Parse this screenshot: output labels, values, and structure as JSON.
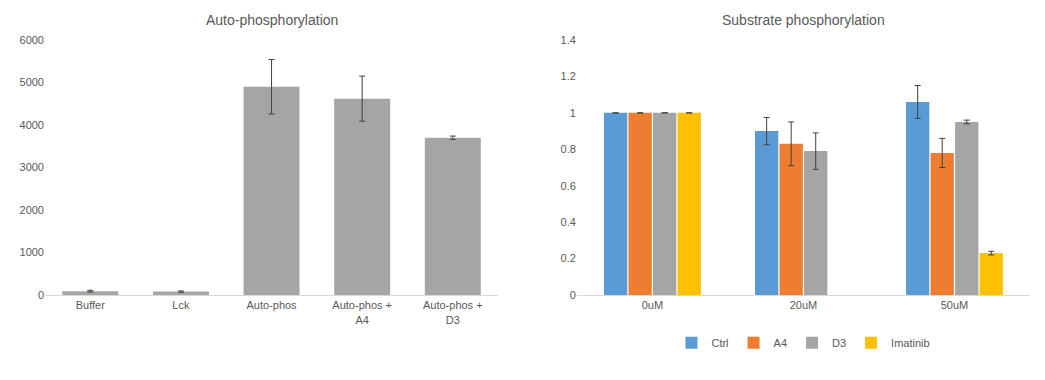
{
  "chart_data": [
    {
      "type": "bar",
      "title": "Auto-phosphorylation",
      "categories": [
        "Buffer",
        "Lck",
        "Auto-phos",
        "Auto-phos + A4",
        "Auto-phos + D3"
      ],
      "values": [
        90,
        80,
        4900,
        4620,
        3700
      ],
      "errors": [
        20,
        15,
        640,
        530,
        40
      ],
      "color": "#a5a5a5",
      "ylim": [
        0,
        6000
      ],
      "yticks": [
        0,
        1000,
        2000,
        3000,
        4000,
        5000,
        6000
      ],
      "grid": false
    },
    {
      "type": "bar",
      "title": "Substrate phosphorylation",
      "categories": [
        "0uM",
        "20uM",
        "50uM"
      ],
      "series": [
        {
          "name": "Ctrl",
          "color": "#5b9bd5",
          "values": [
            1,
            0.9,
            1.06
          ],
          "errors": [
            0,
            0.075,
            0.09
          ]
        },
        {
          "name": "A4",
          "color": "#ed7d31",
          "values": [
            1,
            0.83,
            0.78
          ],
          "errors": [
            0,
            0.12,
            0.08
          ]
        },
        {
          "name": "D3",
          "color": "#a5a5a5",
          "values": [
            1,
            0.79,
            0.95
          ],
          "errors": [
            0,
            0.1,
            0.01
          ]
        },
        {
          "name": "Imatinib",
          "color": "#ffc000",
          "values": [
            1,
            null,
            0.23
          ],
          "errors": [
            0,
            null,
            0.01
          ]
        }
      ],
      "ylim": [
        0,
        1.4
      ],
      "yticks": [
        0,
        0.2,
        0.4,
        0.6,
        0.8,
        1,
        1.2,
        1.4
      ],
      "grid": false,
      "legend": "bottom"
    }
  ]
}
